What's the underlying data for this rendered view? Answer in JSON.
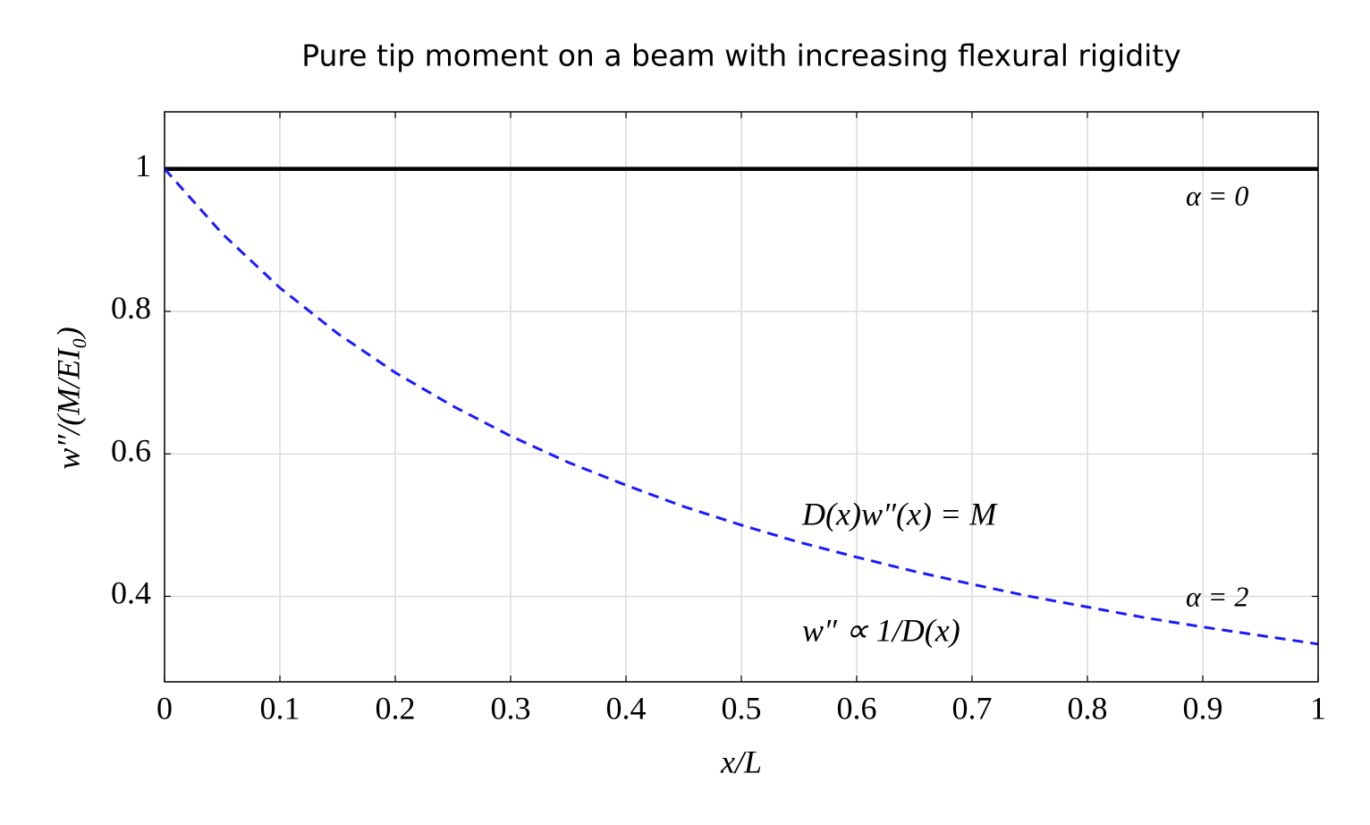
{
  "chart_data": {
    "type": "line",
    "title": "Pure tip moment on a beam with increasing flexural rigidity",
    "x_label": "x/L",
    "y_label": "w″/(M/EI₀)",
    "xlim": [
      0,
      1
    ],
    "ylim": [
      0.28,
      1.08
    ],
    "xticks": [
      0,
      0.1,
      0.2,
      0.3,
      0.4,
      0.5,
      0.6,
      0.7,
      0.8,
      0.9,
      1
    ],
    "yticks": [
      0.4,
      0.6,
      0.8,
      1
    ],
    "grid": true,
    "series": [
      {
        "name": "α = 0",
        "color": "#000000",
        "dash": false,
        "x": [
          0,
          1
        ],
        "values": [
          1,
          1
        ]
      },
      {
        "name": "α = 2",
        "color": "#1a1aff",
        "dash": true,
        "x": [
          0,
          0.05,
          0.1,
          0.15,
          0.2,
          0.25,
          0.3,
          0.35,
          0.4,
          0.45,
          0.5,
          0.55,
          0.6,
          0.65,
          0.7,
          0.75,
          0.8,
          0.85,
          0.9,
          0.95,
          1
        ],
        "values": [
          1,
          0.909,
          0.833,
          0.769,
          0.714,
          0.667,
          0.625,
          0.588,
          0.556,
          0.526,
          0.5,
          0.476,
          0.455,
          0.435,
          0.417,
          0.4,
          0.385,
          0.37,
          0.357,
          0.345,
          0.333
        ]
      }
    ],
    "annotations": [
      "D(x)w″(x) = M",
      "w″ ∝ 1/D(x)"
    ]
  }
}
